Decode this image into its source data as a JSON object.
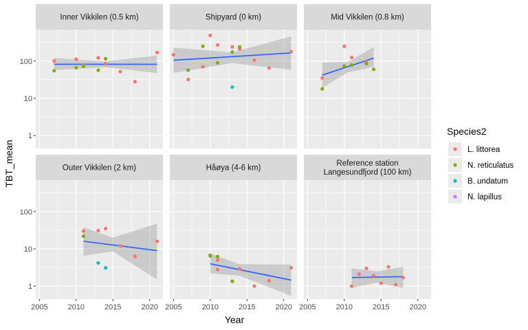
{
  "chart_data": {
    "type": "scatter",
    "xlabel": "Year",
    "ylabel": "TBT_mean",
    "y_scale": "log10",
    "ylim": [
      0.45,
      700
    ],
    "xlim": [
      2004.5,
      2021.8
    ],
    "x_ticks": [
      2005,
      2010,
      2015,
      2020
    ],
    "x_tick_labels": [
      "2005",
      "2010",
      "2015",
      "2020"
    ],
    "y_ticks": [
      1,
      10,
      100
    ],
    "y_tick_labels": [
      "1",
      "10",
      "100"
    ],
    "grid": true,
    "legend": {
      "title": "Species2",
      "placement": "right",
      "entries": [
        {
          "label": "L. littorea",
          "color": "#F8766D"
        },
        {
          "label": "N. reticulatus",
          "color": "#7CAE00"
        },
        {
          "label": "B. undatum",
          "color": "#00BFC4"
        },
        {
          "label": "N. lapillus",
          "color": "#C77CFF"
        }
      ]
    },
    "trend_color": "#3366FF",
    "panels": [
      {
        "title": [
          "Inner Vikkilen (0.5 km)"
        ],
        "points": [
          {
            "x": 2007,
            "y": 100,
            "s": 0
          },
          {
            "x": 2010,
            "y": 112,
            "s": 0
          },
          {
            "x": 2011,
            "y": 80,
            "s": 0
          },
          {
            "x": 2013,
            "y": 122,
            "s": 0
          },
          {
            "x": 2014,
            "y": 85,
            "s": 0
          },
          {
            "x": 2016,
            "y": 52,
            "s": 0
          },
          {
            "x": 2018,
            "y": 28,
            "s": 0
          },
          {
            "x": 2021,
            "y": 170,
            "s": 0
          },
          {
            "x": 2007,
            "y": 55,
            "s": 1
          },
          {
            "x": 2010,
            "y": 66,
            "s": 1
          },
          {
            "x": 2011,
            "y": 72,
            "s": 1
          },
          {
            "x": 2013,
            "y": 57,
            "s": 1
          },
          {
            "x": 2014,
            "y": 115,
            "s": 1
          }
        ],
        "trend": {
          "x": [
            2007,
            2021
          ],
          "y": [
            82,
            82
          ]
        },
        "band": {
          "x": [
            2007,
            2014,
            2021
          ],
          "lower": [
            57,
            68,
            48
          ],
          "upper": [
            120,
            98,
            140
          ]
        }
      },
      {
        "title": [
          "Shipyard (0 km)"
        ],
        "points": [
          {
            "x": 2005,
            "y": 148,
            "s": 0
          },
          {
            "x": 2007,
            "y": 32,
            "s": 0
          },
          {
            "x": 2009,
            "y": 70,
            "s": 0
          },
          {
            "x": 2010,
            "y": 490,
            "s": 0
          },
          {
            "x": 2011,
            "y": 270,
            "s": 0
          },
          {
            "x": 2013,
            "y": 240,
            "s": 0
          },
          {
            "x": 2014,
            "y": 210,
            "s": 0
          },
          {
            "x": 2016,
            "y": 105,
            "s": 0
          },
          {
            "x": 2018,
            "y": 65,
            "s": 0
          },
          {
            "x": 2021,
            "y": 180,
            "s": 0
          },
          {
            "x": 2007,
            "y": 57,
            "s": 1
          },
          {
            "x": 2009,
            "y": 250,
            "s": 1
          },
          {
            "x": 2011,
            "y": 90,
            "s": 1
          },
          {
            "x": 2013,
            "y": 175,
            "s": 1
          },
          {
            "x": 2014,
            "y": 240,
            "s": 1
          },
          {
            "x": 2013,
            "y": 20,
            "s": 2
          }
        ],
        "trend": {
          "x": [
            2005,
            2021
          ],
          "y": [
            105,
            165
          ]
        },
        "band": {
          "x": [
            2005,
            2013,
            2021
          ],
          "lower": [
            48,
            88,
            58
          ],
          "upper": [
            230,
            170,
            460
          ]
        }
      },
      {
        "title": [
          "Mid Vikkilen (0.8 km)"
        ],
        "points": [
          {
            "x": 2007,
            "y": 35,
            "s": 0
          },
          {
            "x": 2010,
            "y": 250,
            "s": 0
          },
          {
            "x": 2011,
            "y": 125,
            "s": 0
          },
          {
            "x": 2013,
            "y": 95,
            "s": 0
          },
          {
            "x": 2007,
            "y": 18,
            "s": 1
          },
          {
            "x": 2010,
            "y": 73,
            "s": 1
          },
          {
            "x": 2011,
            "y": 78,
            "s": 1
          },
          {
            "x": 2013,
            "y": 85,
            "s": 1
          },
          {
            "x": 2014,
            "y": 60,
            "s": 1
          }
        ],
        "trend": {
          "x": [
            2007,
            2014
          ],
          "y": [
            42,
            120
          ]
        },
        "band": {
          "x": [
            2007,
            2010.5,
            2014
          ],
          "lower": [
            19,
            50,
            70
          ],
          "upper": [
            90,
            95,
            240
          ]
        }
      },
      {
        "title": [
          "Outer Vikkilen (2 km)"
        ],
        "points": [
          {
            "x": 2011,
            "y": 30,
            "s": 0
          },
          {
            "x": 2013,
            "y": 31,
            "s": 0
          },
          {
            "x": 2014,
            "y": 35,
            "s": 0
          },
          {
            "x": 2016,
            "y": 12,
            "s": 0
          },
          {
            "x": 2018,
            "y": 6.3,
            "s": 0
          },
          {
            "x": 2021,
            "y": 16,
            "s": 0
          },
          {
            "x": 2011,
            "y": 22,
            "s": 1
          },
          {
            "x": 2013,
            "y": 4.2,
            "s": 2
          },
          {
            "x": 2014,
            "y": 3.1,
            "s": 2
          }
        ],
        "trend": {
          "x": [
            2011,
            2021
          ],
          "y": [
            16,
            9
          ]
        },
        "band": {
          "x": [
            2011,
            2015,
            2021
          ],
          "lower": [
            6.5,
            8.5,
            1.5
          ],
          "upper": [
            38,
            20,
            48
          ]
        }
      },
      {
        "title": [
          "Håøya (4-6 km)"
        ],
        "points": [
          {
            "x": 2010,
            "y": 6.8,
            "s": 0
          },
          {
            "x": 2011,
            "y": 5,
            "s": 0
          },
          {
            "x": 2011,
            "y": 2.8,
            "s": 0
          },
          {
            "x": 2014,
            "y": 2.9,
            "s": 0
          },
          {
            "x": 2016,
            "y": 1,
            "s": 0
          },
          {
            "x": 2018,
            "y": 1.4,
            "s": 0
          },
          {
            "x": 2021,
            "y": 3.1,
            "s": 0
          },
          {
            "x": 2010,
            "y": 6.5,
            "s": 1
          },
          {
            "x": 2011,
            "y": 6.2,
            "s": 1
          },
          {
            "x": 2013,
            "y": 1.35,
            "s": 1
          }
        ],
        "trend": {
          "x": [
            2010,
            2021
          ],
          "y": [
            4,
            1.45
          ]
        },
        "band": {
          "x": [
            2010,
            2014,
            2021
          ],
          "lower": [
            2.2,
            1.9,
            0.55
          ],
          "upper": [
            7.5,
            3.9,
            3.8
          ]
        }
      },
      {
        "title": [
          "Reference station",
          "Langesundfjord (100 km)"
        ],
        "points": [
          {
            "x": 2011,
            "y": 1,
            "s": 0
          },
          {
            "x": 2012,
            "y": 2.1,
            "s": 0
          },
          {
            "x": 2013,
            "y": 3,
            "s": 0
          },
          {
            "x": 2014,
            "y": 1.9,
            "s": 0
          },
          {
            "x": 2015,
            "y": 1.2,
            "s": 0
          },
          {
            "x": 2016,
            "y": 3.3,
            "s": 0
          },
          {
            "x": 2017,
            "y": 1.1,
            "s": 0
          },
          {
            "x": 2018,
            "y": 1.7,
            "s": 0
          }
        ],
        "trend": {
          "x": [
            2011,
            2018
          ],
          "y": [
            1.7,
            1.8
          ]
        },
        "band": {
          "x": [
            2011,
            2014.5,
            2018
          ],
          "lower": [
            0.9,
            1.25,
            0.9
          ],
          "upper": [
            3.0,
            2.5,
            3.3
          ]
        }
      }
    ]
  }
}
